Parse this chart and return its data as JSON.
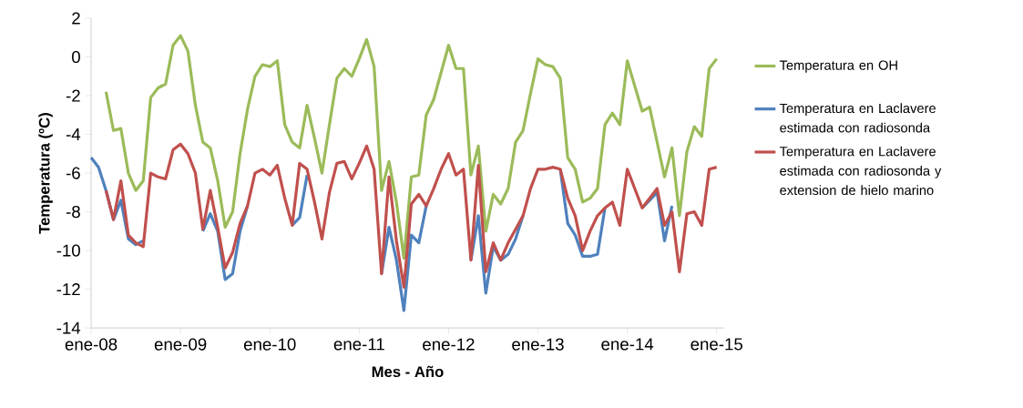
{
  "chart_data": {
    "type": "line",
    "xlabel": "Mes - Año",
    "ylabel": "Temperatura (ºC)",
    "x": [
      "2008-01",
      "2008-02",
      "2008-03",
      "2008-04",
      "2008-05",
      "2008-06",
      "2008-07",
      "2008-08",
      "2008-09",
      "2008-10",
      "2008-11",
      "2008-12",
      "2009-01",
      "2009-02",
      "2009-03",
      "2009-04",
      "2009-05",
      "2009-06",
      "2009-07",
      "2009-08",
      "2009-09",
      "2009-10",
      "2009-11",
      "2009-12",
      "2010-01",
      "2010-02",
      "2010-03",
      "2010-04",
      "2010-05",
      "2010-06",
      "2010-07",
      "2010-08",
      "2010-09",
      "2010-10",
      "2010-11",
      "2010-12",
      "2011-01",
      "2011-02",
      "2011-03",
      "2011-04",
      "2011-05",
      "2011-06",
      "2011-07",
      "2011-08",
      "2011-09",
      "2011-10",
      "2011-11",
      "2011-12",
      "2012-01",
      "2012-02",
      "2012-03",
      "2012-04",
      "2012-05",
      "2012-06",
      "2012-07",
      "2012-08",
      "2012-09",
      "2012-10",
      "2012-11",
      "2012-12",
      "2013-01",
      "2013-02",
      "2013-03",
      "2013-04",
      "2013-05",
      "2013-06",
      "2013-07",
      "2013-08",
      "2013-09",
      "2013-10",
      "2013-11",
      "2013-12",
      "2014-01",
      "2014-02",
      "2014-03",
      "2014-04",
      "2014-05",
      "2014-06",
      "2014-07",
      "2014-08",
      "2014-09",
      "2014-10",
      "2014-11",
      "2014-12",
      "2015-01"
    ],
    "series": [
      {
        "name": "Temperatura en OH",
        "color": "#9bbb59",
        "values": [
          null,
          null,
          -1.8,
          -3.8,
          -3.7,
          -6.0,
          -6.9,
          -6.4,
          -2.1,
          -1.6,
          -1.4,
          0.6,
          1.1,
          0.3,
          -2.5,
          -4.4,
          -4.7,
          -6.4,
          -8.8,
          -8.0,
          -5.0,
          -2.7,
          -1.0,
          -0.4,
          -0.5,
          -0.2,
          -3.5,
          -4.4,
          -4.7,
          -2.5,
          -4.2,
          -6.0,
          -3.5,
          -1.1,
          -0.6,
          -1.0,
          -0.1,
          0.9,
          -0.5,
          -6.9,
          -5.4,
          -7.5,
          -10.4,
          -6.2,
          -6.1,
          -3.0,
          -2.2,
          -0.8,
          0.6,
          -0.6,
          -0.6,
          -6.1,
          -4.6,
          -9.0,
          -7.1,
          -7.6,
          -6.8,
          -4.4,
          -3.8,
          -1.9,
          -0.1,
          -0.4,
          -0.5,
          -1.1,
          -5.2,
          -5.8,
          -7.5,
          -7.3,
          -6.8,
          -3.5,
          -2.9,
          -3.5,
          -0.2,
          -1.5,
          -2.8,
          -2.6,
          -4.4,
          -6.2,
          -4.7,
          -8.2,
          -4.9,
          -3.6,
          -4.1,
          -0.6,
          -0.1
        ]
      },
      {
        "name": "Temperatura en Laclavere estimada con radiosonda",
        "color": "#4f81bd",
        "values": [
          -5.2,
          -5.7,
          -6.9,
          -8.4,
          -7.4,
          -9.4,
          -9.7,
          -9.5,
          null,
          null,
          null,
          null,
          null,
          null,
          null,
          -9.0,
          -8.1,
          -9.0,
          -11.5,
          -11.2,
          -9.0,
          -7.7,
          null,
          null,
          null,
          null,
          null,
          -8.7,
          -8.3,
          -6.1,
          null,
          null,
          null,
          null,
          null,
          null,
          null,
          null,
          null,
          -11.2,
          -8.8,
          -10.5,
          -13.1,
          -9.2,
          -9.6,
          -7.7,
          null,
          null,
          null,
          null,
          null,
          -10.5,
          -8.2,
          -12.2,
          -9.8,
          -10.5,
          -10.2,
          -9.4,
          -8.2,
          null,
          null,
          null,
          null,
          -5.8,
          -8.6,
          -9.2,
          -10.3,
          -10.3,
          -10.2,
          -7.8,
          null,
          null,
          null,
          null,
          -7.8,
          -7.4,
          -7.0,
          -9.5,
          -7.7,
          null,
          null,
          null,
          null,
          null,
          null
        ]
      },
      {
        "name": "Temperatura en Laclavere estimada con radiosonda y extension de hielo marino",
        "color": "#c0504d",
        "values": [
          null,
          null,
          -6.9,
          -8.4,
          -6.4,
          -9.2,
          -9.6,
          -9.8,
          -6.0,
          -6.2,
          -6.3,
          -4.8,
          -4.5,
          -5.0,
          -6.0,
          -8.9,
          -6.9,
          -8.8,
          -10.9,
          -10.1,
          -8.6,
          -7.7,
          -6.0,
          -5.8,
          -6.1,
          -5.6,
          -7.3,
          -8.7,
          -5.5,
          -5.8,
          -7.5,
          -9.4,
          -7.0,
          -5.5,
          -5.4,
          -6.3,
          -5.5,
          -4.6,
          -5.8,
          -11.2,
          -6.2,
          -9.5,
          -11.9,
          -7.6,
          -7.1,
          -7.7,
          -6.8,
          -5.8,
          -5.0,
          -6.1,
          -5.8,
          -10.5,
          -5.6,
          -11.1,
          -9.6,
          -10.5,
          -9.6,
          -8.9,
          -8.2,
          -6.8,
          -5.8,
          -5.8,
          -5.7,
          -5.8,
          -7.3,
          -8.2,
          -10.0,
          -9.0,
          -8.2,
          -7.8,
          -7.5,
          -8.7,
          -5.8,
          -6.8,
          -7.8,
          -7.3,
          -6.8,
          -8.7,
          -8.0,
          -11.1,
          -8.1,
          -8.0,
          -8.7,
          -5.8,
          -5.7
        ]
      }
    ],
    "xlim": [
      "2008-01",
      "2015-02"
    ],
    "xticks": [
      {
        "value": "2008-01",
        "label": "ene-08"
      },
      {
        "value": "2009-01",
        "label": "ene-09"
      },
      {
        "value": "2010-01",
        "label": "ene-10"
      },
      {
        "value": "2011-01",
        "label": "ene-11"
      },
      {
        "value": "2012-01",
        "label": "ene-12"
      },
      {
        "value": "2013-01",
        "label": "ene-13"
      },
      {
        "value": "2014-01",
        "label": "ene-14"
      },
      {
        "value": "2015-01",
        "label": "ene-15"
      }
    ],
    "ylim": [
      -14,
      2
    ],
    "yticks": [
      -14,
      -12,
      -10,
      -8,
      -6,
      -4,
      -2,
      0,
      2
    ],
    "grid": false,
    "legend": "right",
    "marker": "none",
    "line_style": "solid"
  }
}
